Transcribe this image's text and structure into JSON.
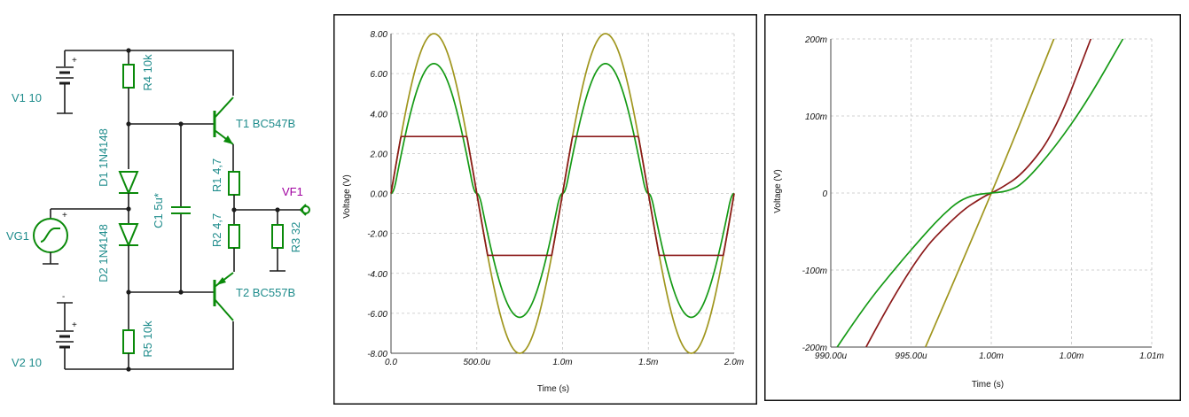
{
  "schematic": {
    "v1_label": "V1 10",
    "v2_label": "V2 10",
    "vg1_label": "VG1",
    "r4_label": "R4 10k",
    "r5_label": "R5 10k",
    "d1_label": "D1 1N4148",
    "d2_label": "D2 1N4148",
    "c1_label": "C1 5u*",
    "t1_label": "T1 BC547B",
    "t2_label": "T2 BC557B",
    "r1_label": "R1 4,7",
    "r2_label": "R2 4,7",
    "r3_label": "R3 32",
    "vf1_label": "VF1",
    "plus": "+",
    "minus": "-"
  },
  "chart_data": [
    {
      "type": "line",
      "xlabel": "Time (s)",
      "ylabel": "Voltage (V)",
      "xlim": [
        0,
        0.002
      ],
      "ylim": [
        -8,
        8
      ],
      "grid": true,
      "xticks": [
        "0.0",
        "500.0u",
        "1.0m",
        "1.5m",
        "2.0m"
      ],
      "yticks": [
        "8.00",
        "6.00",
        "4.00",
        "2.00",
        "0.00",
        "-2.00",
        "-4.00",
        "-6.00",
        "-8.00"
      ],
      "series": [
        {
          "color": "#a0961e",
          "kind": "sine",
          "amplitude": 8.0,
          "frequency_hz": 1000
        },
        {
          "color": "#159a15",
          "kind": "sine_deadzone",
          "peak_pos": 6.5,
          "peak_neg": 6.2,
          "frequency_hz": 1000
        },
        {
          "color": "#8b1a1a",
          "kind": "clipped_sine",
          "clip_pos": 2.85,
          "clip_neg": -3.1,
          "frequency_hz": 1000
        }
      ]
    },
    {
      "type": "line",
      "xlabel": "Time (s)",
      "ylabel": "Voltage (V)",
      "xlim": [
        0.00099,
        0.00101
      ],
      "ylim": [
        -0.2,
        0.2
      ],
      "grid": true,
      "xticks": [
        "990.00u",
        "995.00u",
        "1.00m",
        "1.00m",
        "1.01m"
      ],
      "yticks": [
        "200m",
        "100m",
        "0",
        "-100m",
        "-200m"
      ],
      "series": [
        {
          "color": "#a0961e",
          "points": [
            [
              0.0009959,
              -0.2
            ],
            [
              0.001,
              -0.003
            ],
            [
              0.0010039,
              0.2
            ]
          ]
        },
        {
          "color": "#8b1a1a",
          "points": [
            [
              0.0009922,
              -0.2
            ],
            [
              0.000995,
              -0.09
            ],
            [
              0.000998,
              -0.025
            ],
            [
              0.0009995,
              -0.005
            ],
            [
              0.001,
              0
            ],
            [
              0.0010005,
              0.005
            ],
            [
              0.001002,
              0.025
            ],
            [
              0.001004,
              0.08
            ],
            [
              0.0010062,
              0.2
            ]
          ]
        },
        {
          "color": "#159a15",
          "points": [
            [
              0.0009904,
              -0.2
            ],
            [
              0.000992,
              -0.15
            ],
            [
              0.000994,
              -0.098
            ],
            [
              0.000996,
              -0.05
            ],
            [
              0.000997,
              -0.028
            ],
            [
              0.000998,
              -0.01
            ],
            [
              0.000999,
              -0.002
            ],
            [
              0.001,
              0
            ],
            [
              0.001001,
              0.002
            ],
            [
              0.001002,
              0.012
            ],
            [
              0.001004,
              0.06
            ],
            [
              0.001006,
              0.12
            ],
            [
              0.0010082,
              0.2
            ]
          ]
        }
      ]
    }
  ]
}
